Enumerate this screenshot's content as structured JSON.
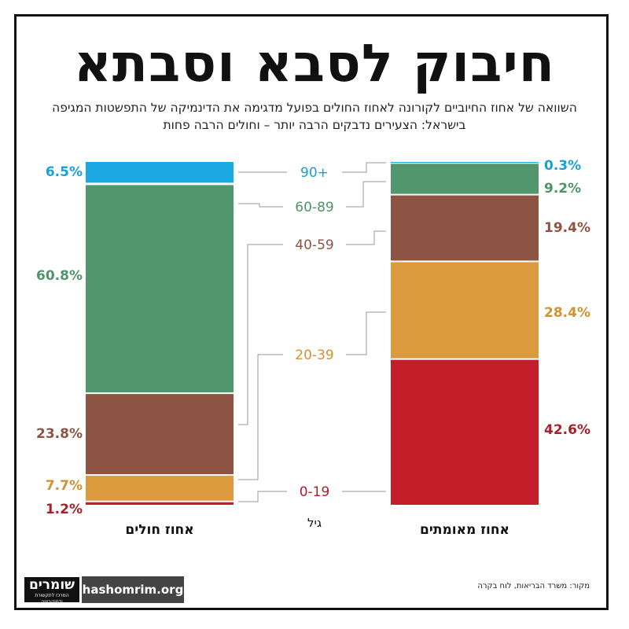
{
  "title": "חיבוק לסבא וסבתא",
  "subtitle": "השוואה של אחוז החיוביים לקורונה לאחוז החולים בפועל מדגימה את הדינמיקה של התפשטות המגיפה בישראל: הצעירים נדבקים הרבה יותר – וחולים הרבה פחות",
  "chart_data": {
    "type": "bar",
    "stacked": true,
    "categories": [
      "0-19",
      "20-39",
      "40-59",
      "60-89",
      "90+"
    ],
    "xlabel": "גיל",
    "series": [
      {
        "name": "אחוז חולים",
        "values": [
          1.2,
          7.7,
          23.8,
          60.8,
          6.5
        ],
        "labels": [
          "1.2%",
          "7.7%",
          "23.8%",
          "60.8%",
          "6.5%"
        ]
      },
      {
        "name": "אחוז מאומתים",
        "values": [
          42.6,
          28.4,
          19.4,
          9.2,
          0.3
        ],
        "labels": [
          "42.6%",
          "28.4%",
          "19.4%",
          "9.2%",
          "0.3%"
        ]
      }
    ],
    "colors": [
      "#c41e2a",
      "#dc9a3f",
      "#8e5443",
      "#51966f",
      "#1aa9e0"
    ],
    "label_colors": [
      "#a8202b",
      "#d1922f",
      "#8e5443",
      "#4f9569",
      "#1aa0d8"
    ]
  },
  "footer": {
    "logo_main": "שומרים",
    "logo_sub": "המרכז לתקשורת ודמוקרטיה",
    "site": "hashomrim.org",
    "source": "מקור: משרד הבריאות, לוח בקרה"
  }
}
